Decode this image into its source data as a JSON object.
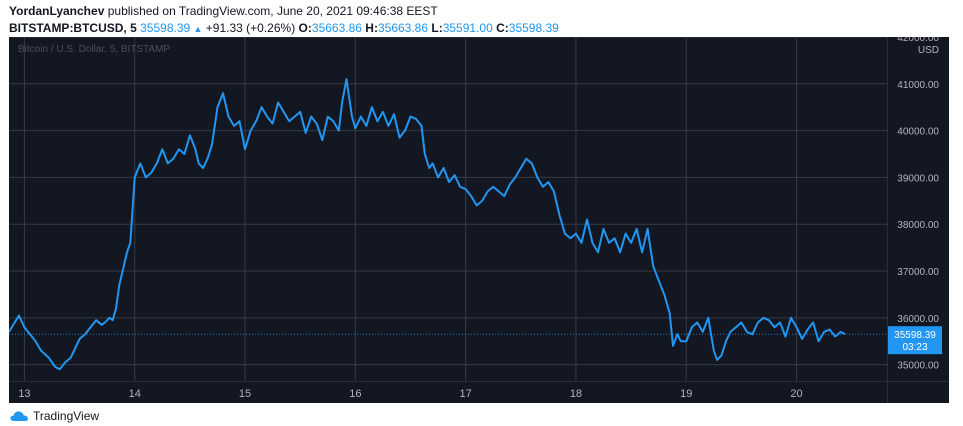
{
  "header": {
    "author": "YordanLyanchev",
    "published_text": "published on TradingView.com, June 20, 2021 09:46:38 EEST",
    "symbol": "BITSTAMP:BTCUSD, 5",
    "last": "35598.39",
    "change": "+91.33 (+0.26%)",
    "o_label": "O:",
    "o_value": "35663.86",
    "h_label": "H:",
    "h_value": "35663.86",
    "l_label": "L:",
    "l_value": "35591.00",
    "c_label": "C:",
    "c_value": "35598.39"
  },
  "footer": {
    "brand": "TradingView"
  },
  "colors": {
    "background": "#131722",
    "line": "#2196f3",
    "grid": "#363a45",
    "axis_text": "#b2b5be"
  },
  "chart_data": {
    "type": "line",
    "title": "Bitcoin / U.S. Dollar, 5, BITSTAMP",
    "currency": "USD",
    "ylim": [
      34650,
      42000
    ],
    "y_ticks": [
      35000,
      36000,
      37000,
      38000,
      39000,
      40000,
      41000,
      42000
    ],
    "y_tick_labels": [
      "35000.00",
      "36000.00",
      "37000.00",
      "38000.00",
      "39000.00",
      "40000.00",
      "41000.00",
      "42000.00"
    ],
    "x_ticks": [
      13,
      14,
      15,
      16,
      17,
      18,
      19,
      20
    ],
    "x_tick_labels": [
      "13",
      "14",
      "15",
      "16",
      "17",
      "18",
      "19",
      "20"
    ],
    "xlim": [
      12.86,
      20.82
    ],
    "grid": true,
    "price_label": "35598.39",
    "countdown_label": "03:23",
    "series": [
      {
        "x": [
          12.86,
          12.95,
          13.0,
          13.05,
          13.1,
          13.15,
          13.22,
          13.28,
          13.32,
          13.37,
          13.42,
          13.46,
          13.5,
          13.55,
          13.6,
          13.65,
          13.7,
          13.73,
          13.77,
          13.8,
          13.83,
          13.86,
          13.9,
          13.93,
          13.96,
          13.98,
          14.0,
          14.05,
          14.1,
          14.15,
          14.2,
          14.25,
          14.3,
          14.35,
          14.4,
          14.45,
          14.5,
          14.55,
          14.58,
          14.62,
          14.66,
          14.7,
          14.75,
          14.8,
          14.85,
          14.9,
          14.95,
          15.0,
          15.05,
          15.1,
          15.15,
          15.2,
          15.25,
          15.3,
          15.35,
          15.4,
          15.45,
          15.5,
          15.55,
          15.6,
          15.65,
          15.7,
          15.75,
          15.8,
          15.85,
          15.88,
          15.92,
          15.97,
          16.0,
          16.05,
          16.1,
          16.15,
          16.2,
          16.25,
          16.3,
          16.35,
          16.4,
          16.45,
          16.5,
          16.55,
          16.6,
          16.63,
          16.67,
          16.7,
          16.75,
          16.8,
          16.85,
          16.9,
          16.95,
          17.0,
          17.05,
          17.1,
          17.15,
          17.2,
          17.25,
          17.3,
          17.35,
          17.4,
          17.45,
          17.5,
          17.55,
          17.6,
          17.65,
          17.7,
          17.75,
          17.8,
          17.85,
          17.9,
          17.95,
          18.0,
          18.05,
          18.1,
          18.15,
          18.2,
          18.25,
          18.3,
          18.35,
          18.4,
          18.45,
          18.5,
          18.55,
          18.6,
          18.65,
          18.7,
          18.75,
          18.8,
          18.85,
          18.88,
          18.92,
          18.95,
          19.0,
          19.05,
          19.1,
          19.15,
          19.2,
          19.25,
          19.28,
          19.32,
          19.36,
          19.4,
          19.45,
          19.5,
          19.55,
          19.6,
          19.65,
          19.7,
          19.75,
          19.8,
          19.85,
          19.9,
          19.95,
          20.0,
          20.05,
          20.1,
          20.15,
          20.2,
          20.25,
          20.3,
          20.35,
          20.4,
          20.44
        ],
        "values": [
          35700,
          36050,
          35800,
          35650,
          35500,
          35300,
          35150,
          34950,
          34900,
          35050,
          35150,
          35350,
          35550,
          35650,
          35800,
          35950,
          35850,
          35900,
          36000,
          35950,
          36200,
          36700,
          37100,
          37400,
          37600,
          38300,
          39000,
          39300,
          39000,
          39100,
          39300,
          39600,
          39300,
          39400,
          39600,
          39500,
          39900,
          39600,
          39300,
          39200,
          39400,
          39700,
          40500,
          40800,
          40300,
          40100,
          40200,
          39600,
          40000,
          40200,
          40500,
          40300,
          40150,
          40600,
          40400,
          40200,
          40300,
          40400,
          39950,
          40300,
          40150,
          39800,
          40300,
          40200,
          40000,
          40600,
          41100,
          40300,
          40050,
          40300,
          40100,
          40500,
          40200,
          40400,
          40100,
          40350,
          39850,
          40000,
          40300,
          40250,
          40100,
          39500,
          39200,
          39300,
          39000,
          39200,
          38900,
          39050,
          38800,
          38750,
          38600,
          38400,
          38500,
          38700,
          38800,
          38700,
          38600,
          38850,
          39000,
          39200,
          39400,
          39300,
          39000,
          38800,
          38900,
          38700,
          38200,
          37800,
          37700,
          37800,
          37600,
          38100,
          37600,
          37400,
          37900,
          37600,
          37700,
          37400,
          37800,
          37600,
          37900,
          37400,
          37900,
          37100,
          36800,
          36500,
          36100,
          35400,
          35650,
          35500,
          35500,
          35800,
          35900,
          35700,
          36000,
          35300,
          35100,
          35200,
          35500,
          35700,
          35800,
          35900,
          35700,
          35650,
          35900,
          36000,
          35950,
          35800,
          35900,
          35600,
          36000,
          35800,
          35550,
          35750,
          35900,
          35500,
          35700,
          35750,
          35600,
          35700,
          35650
        ]
      }
    ]
  }
}
